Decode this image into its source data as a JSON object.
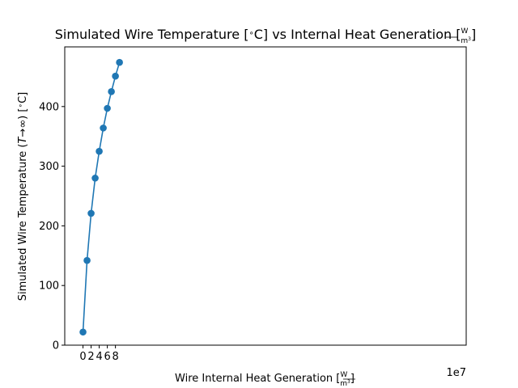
{
  "chart_data": {
    "type": "line",
    "title": {
      "prefix": "Simulated Wire Temperature [",
      "degree": "∘",
      "unit_after_degree": "C] vs Internal Heat Generation [",
      "frac_num": "W",
      "frac_den": "m",
      "frac_den_exp": "3",
      "suffix": "]"
    },
    "xlabel": {
      "text": "Wire Internal Heat Generation [",
      "frac_num": "W",
      "frac_den": "m",
      "frac_den_exp": "3",
      "suffix": "]"
    },
    "ylabel": {
      "text": "Simulated Wire Temperature (",
      "var": "T",
      "arrow": "→",
      "inf": "∞",
      "close": ") [",
      "degree": "∘",
      "unit": "C]"
    },
    "x_offset_label": "1e7",
    "x_scale": 10000000,
    "xlim": [
      -4.5,
      94.5
    ],
    "ylim": [
      0,
      500
    ],
    "xticks": [
      0,
      2,
      4,
      6,
      8
    ],
    "yticks": [
      0,
      100,
      200,
      300,
      400
    ],
    "xtick_labels": [
      "0",
      "2",
      "4",
      "6",
      "8"
    ],
    "ytick_labels": [
      "0",
      "100",
      "200",
      "300",
      "400"
    ],
    "series": [
      {
        "color": "#1f77b4",
        "marker": "circle",
        "x": [
          0,
          10000000,
          20000000,
          30000000,
          40000000,
          50000000,
          60000000,
          70000000,
          80000000,
          90000000
        ],
        "y": [
          22,
          142,
          221,
          280,
          325,
          364,
          397,
          425,
          451,
          474
        ]
      }
    ],
    "grid": false,
    "legend": false
  }
}
